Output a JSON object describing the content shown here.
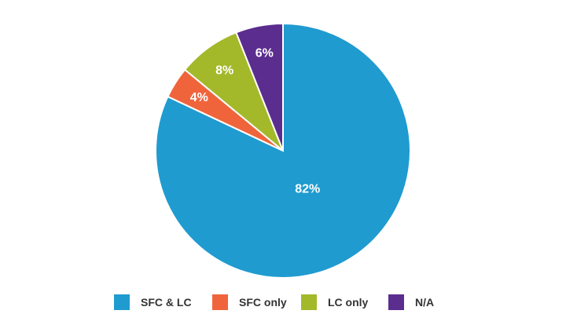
{
  "chart_data": {
    "type": "pie",
    "categories": [
      "SFC & LC",
      "SFC only",
      "LC only",
      "N/A"
    ],
    "values": [
      82,
      4,
      8,
      6
    ],
    "labels": [
      "82%",
      "4%",
      "8%",
      "6%"
    ],
    "colors": [
      "#1f9bd0",
      "#f0643c",
      "#a3b92a",
      "#5b2d8e"
    ],
    "start": "top",
    "direction": "clockwise",
    "legend_position": "bottom"
  }
}
